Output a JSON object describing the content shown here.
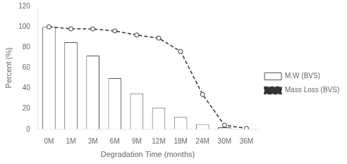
{
  "chart_data": {
    "type": "bar",
    "categories": [
      "0M",
      "1M",
      "3M",
      "6M",
      "9M",
      "12M",
      "18M",
      "24M",
      "30M",
      "36M"
    ],
    "series": [
      {
        "name": "M.W (BVS)",
        "type": "bar",
        "color": "#ffffff",
        "values": [
          100,
          85,
          72,
          50,
          35,
          21,
          12,
          5,
          2,
          0
        ]
      },
      {
        "name": "Mass Loss (BVS)",
        "type": "line",
        "color": "#333333",
        "marker": "circle",
        "line_style": "dashed",
        "values": [
          100,
          98,
          98,
          96,
          92,
          89,
          76,
          34,
          4,
          1
        ]
      }
    ],
    "xlabel": "Degradation Time (months)",
    "ylabel": "Percent (%)",
    "ylim": [
      0,
      120
    ],
    "yticks": [
      0,
      20,
      40,
      60,
      80,
      100,
      120
    ],
    "grid": false,
    "legend": "right"
  }
}
